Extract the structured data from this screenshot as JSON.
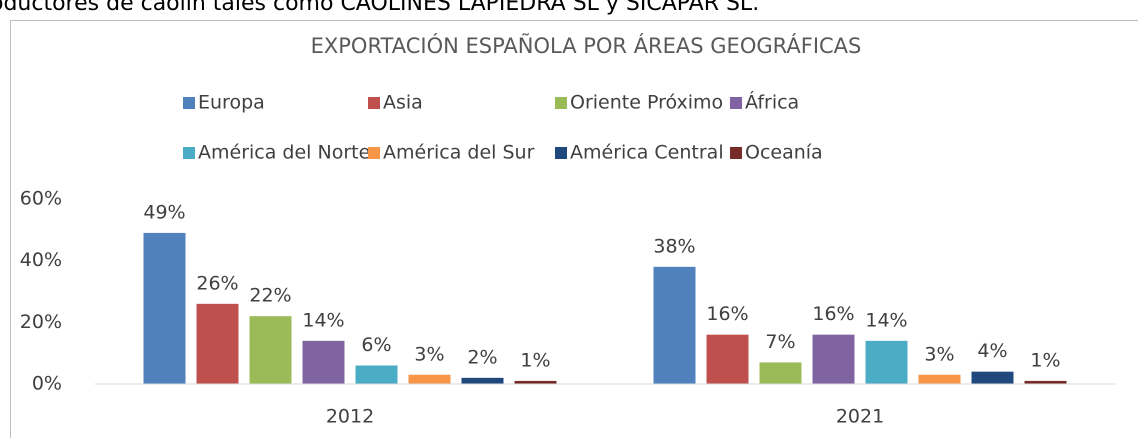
{
  "context_text": "oductores de caolín tales como CAOLINES LAPIEDRA SL y SICAPAR SL.",
  "chart_data": {
    "type": "bar",
    "title": "EXPORTACIÓN ESPAÑOLA POR ÁREAS GEOGRÁFICAS",
    "categories": [
      "2012",
      "2021"
    ],
    "series": [
      {
        "name": "Europa",
        "color": "#4f81bd",
        "values": [
          49,
          38
        ],
        "value_labels": [
          "49%",
          "38%"
        ]
      },
      {
        "name": "Asia",
        "color": "#c0504d",
        "values": [
          26,
          16
        ],
        "value_labels": [
          "26%",
          "16%"
        ]
      },
      {
        "name": "Oriente Próximo",
        "color": "#9bbb59",
        "values": [
          22,
          7
        ],
        "value_labels": [
          "22%",
          "7%"
        ]
      },
      {
        "name": "África",
        "color": "#8064a2",
        "values": [
          14,
          16
        ],
        "value_labels": [
          "14%",
          "16%"
        ]
      },
      {
        "name": "América del Norte",
        "color": "#4bacc6",
        "values": [
          6,
          14
        ],
        "value_labels": [
          "6%",
          "14%"
        ]
      },
      {
        "name": "América del Sur",
        "color": "#f79646",
        "values": [
          3,
          3
        ],
        "value_labels": [
          "3%",
          "3%"
        ]
      },
      {
        "name": "América Central",
        "color": "#1f497d",
        "values": [
          2,
          4
        ],
        "value_labels": [
          "2%",
          "4%"
        ]
      },
      {
        "name": "Oceanía",
        "color": "#772c2a",
        "values": [
          1,
          1
        ],
        "value_labels": [
          "1%",
          "1%"
        ]
      }
    ],
    "ylim": [
      0,
      60
    ],
    "yticks": [
      {
        "value": 0,
        "label": "0%"
      },
      {
        "value": 20,
        "label": "20%"
      },
      {
        "value": 40,
        "label": "40%"
      },
      {
        "value": 60,
        "label": "60%"
      }
    ],
    "grid": false,
    "legend": "top"
  }
}
